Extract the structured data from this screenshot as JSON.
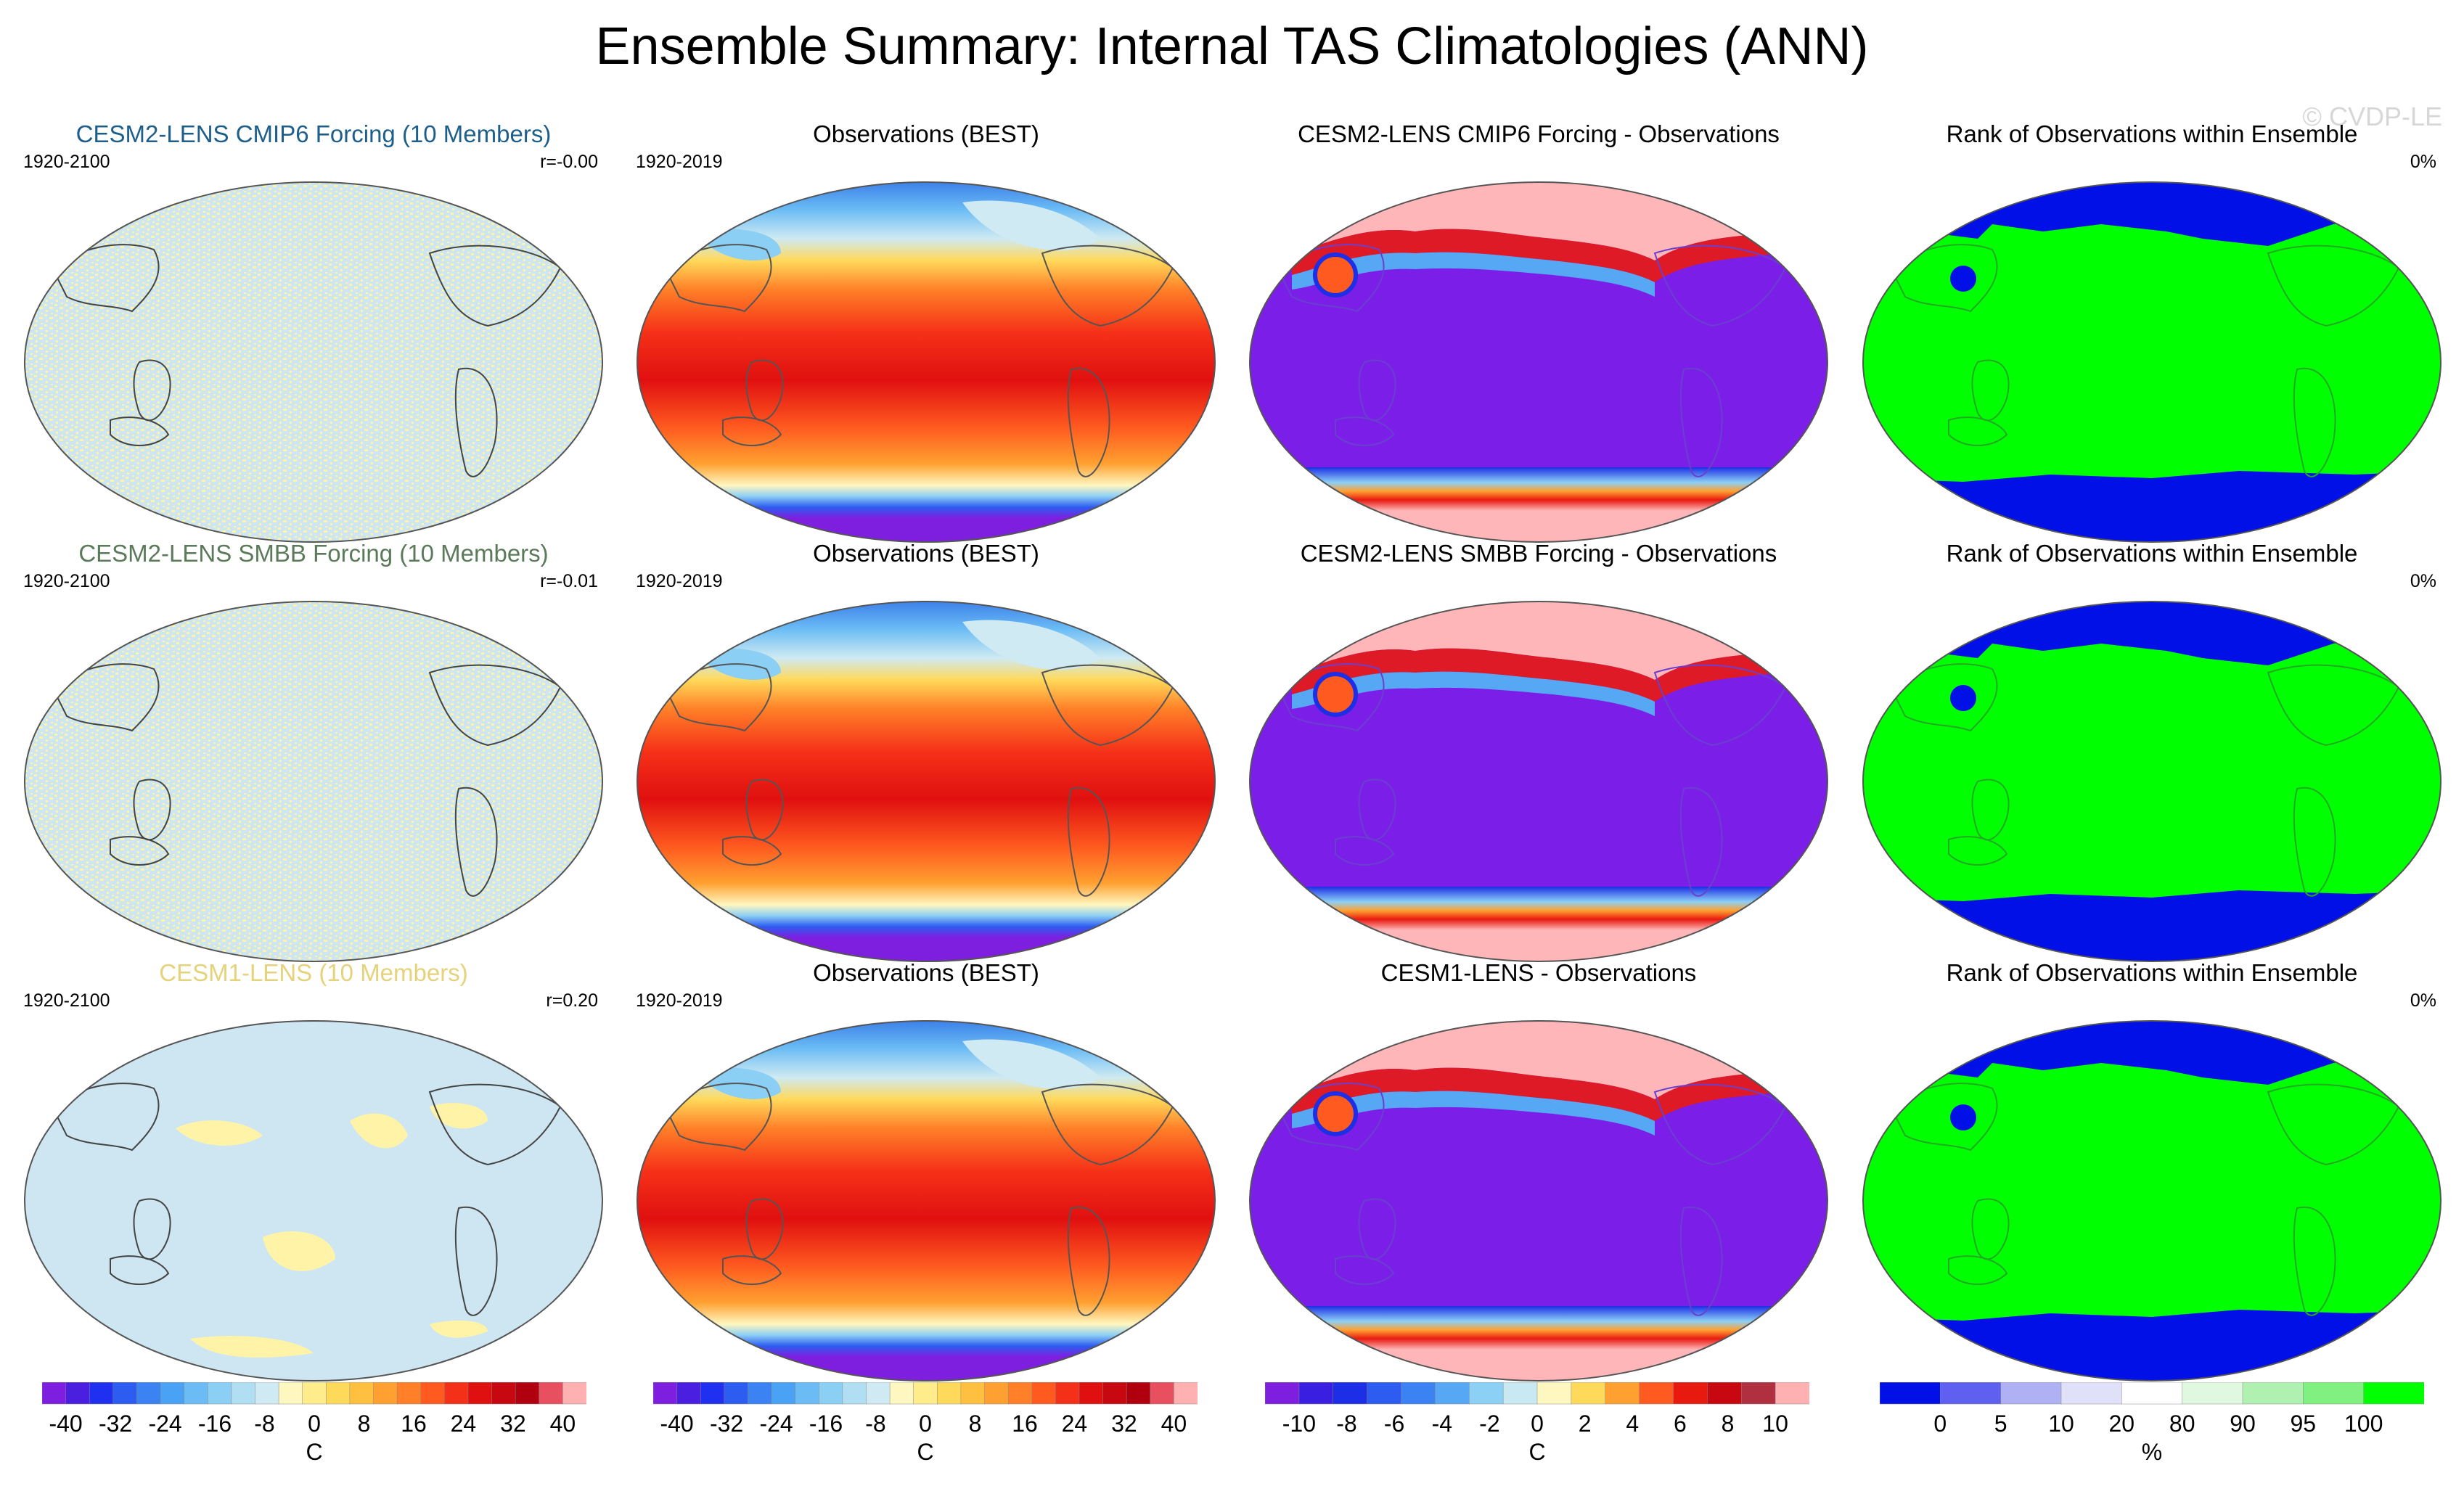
{
  "title": "Ensemble Summary: Internal TAS Climatologies (ANN)",
  "watermark": "© CVDP-LE",
  "colors": {
    "ocean_light": "#cde6f2",
    "speckle_yellow": "#fff3a8",
    "diff_base": "#7b1fe8",
    "diff_pink": "#ffb6b9",
    "rank_green": "#00ff00",
    "rank_blue": "#0010e6"
  },
  "rows": [
    {
      "ensemble": {
        "title": "CESM2-LENS CMIP6 Forcing (10 Members)",
        "title_color": "#1d5e8a",
        "period": "1920-2100",
        "r": "r=-0.00"
      },
      "obs": {
        "title": "Observations (BEST)",
        "period": "1920-2019"
      },
      "diff": {
        "title": "CESM2-LENS CMIP6 Forcing - Observations"
      },
      "rank": {
        "title": "Rank of Observations within Ensemble",
        "pct": "0%"
      }
    },
    {
      "ensemble": {
        "title": "CESM2-LENS SMBB Forcing (10 Members)",
        "title_color": "#5a7a5a",
        "period": "1920-2100",
        "r": "r=-0.01"
      },
      "obs": {
        "title": "Observations (BEST)",
        "period": "1920-2019"
      },
      "diff": {
        "title": "CESM2-LENS SMBB Forcing - Observations"
      },
      "rank": {
        "title": "Rank of Observations within Ensemble",
        "pct": "0%"
      }
    },
    {
      "ensemble": {
        "title": "CESM1-LENS (10 Members)",
        "title_color": "#e6d27a",
        "period": "1920-2100",
        "r": "r=0.20"
      },
      "obs": {
        "title": "Observations (BEST)",
        "period": "1920-2019"
      },
      "diff": {
        "title": "CESM1-LENS - Observations"
      },
      "rank": {
        "title": "Rank of Observations within Ensemble",
        "pct": "0%"
      }
    }
  ],
  "colorbars": [
    {
      "name": "tas-colorbar-1",
      "unit": "C",
      "labels": [
        "-40",
        "-32",
        "-24",
        "-16",
        "-8",
        "0",
        "8",
        "16",
        "24",
        "32",
        "40"
      ],
      "colors": [
        "#7e1fe0",
        "#4b1fe0",
        "#2030f0",
        "#2d5cf0",
        "#3b82f2",
        "#4aa2f5",
        "#6bbcf5",
        "#8ccff5",
        "#b0def3",
        "#cfeaf2",
        "#fff7c0",
        "#ffec8a",
        "#ffd95a",
        "#ffc040",
        "#ffa030",
        "#ff8028",
        "#ff5a20",
        "#f53018",
        "#e01010",
        "#c80810",
        "#b00010",
        "#e85060",
        "#ffb0b0"
      ]
    },
    {
      "name": "tas-colorbar-2",
      "unit": "C",
      "labels": [
        "-40",
        "-32",
        "-24",
        "-16",
        "-8",
        "0",
        "8",
        "16",
        "24",
        "32",
        "40"
      ],
      "colors": [
        "#7e1fe0",
        "#4b1fe0",
        "#2030f0",
        "#2d5cf0",
        "#3b82f2",
        "#4aa2f5",
        "#6bbcf5",
        "#8ccff5",
        "#b0def3",
        "#cfeaf2",
        "#fff7c0",
        "#ffec8a",
        "#ffd95a",
        "#ffc040",
        "#ffa030",
        "#ff8028",
        "#ff5a20",
        "#f53018",
        "#e01010",
        "#c80810",
        "#b00010",
        "#e85060",
        "#ffb0b0"
      ]
    },
    {
      "name": "diff-colorbar",
      "unit": "C",
      "labels": [
        "-10",
        "-8",
        "-6",
        "-4",
        "-2",
        "0",
        "2",
        "4",
        "6",
        "8",
        "10"
      ],
      "colors": [
        "#7e1fe0",
        "#3b1fe0",
        "#1c2fe6",
        "#2d5cf0",
        "#3b82f2",
        "#56a8f5",
        "#8cd0f5",
        "#c8e8f2",
        "#fff7c0",
        "#ffd95a",
        "#ffa030",
        "#ff5a20",
        "#e81a10",
        "#c80810",
        "#b03040",
        "#ffb0b0"
      ]
    },
    {
      "name": "rank-colorbar",
      "unit": "%",
      "labels": [
        "0",
        "5",
        "10",
        "20",
        "80",
        "90",
        "95",
        "100"
      ],
      "colors": [
        "#0010e6",
        "#6060f0",
        "#b0b0f4",
        "#e0e0f8",
        "#ffffff",
        "#e0f8e0",
        "#b0f0b0",
        "#80f080",
        "#00ff00"
      ]
    }
  ],
  "chart_data": [
    {
      "type": "heatmap",
      "title": "CESM2-LENS CMIP6 Forcing (10 Members)",
      "subtitle_left": "1920-2100",
      "subtitle_right": "r=-0.00",
      "units": "C",
      "range": [
        -40,
        40
      ]
    },
    {
      "type": "heatmap",
      "title": "Observations (BEST)",
      "subtitle_left": "1920-2019",
      "units": "C",
      "range": [
        -40,
        40
      ]
    },
    {
      "type": "heatmap",
      "title": "CESM2-LENS CMIP6 Forcing - Observations",
      "units": "C",
      "range": [
        -10,
        10
      ]
    },
    {
      "type": "heatmap",
      "title": "Rank of Observations within Ensemble",
      "subtitle_right": "0%",
      "units": "%",
      "range": [
        0,
        100
      ]
    },
    {
      "type": "heatmap",
      "title": "CESM2-LENS SMBB Forcing (10 Members)",
      "subtitle_left": "1920-2100",
      "subtitle_right": "r=-0.01",
      "units": "C",
      "range": [
        -40,
        40
      ]
    },
    {
      "type": "heatmap",
      "title": "Observations (BEST)",
      "subtitle_left": "1920-2019",
      "units": "C",
      "range": [
        -40,
        40
      ]
    },
    {
      "type": "heatmap",
      "title": "CESM2-LENS SMBB Forcing - Observations",
      "units": "C",
      "range": [
        -10,
        10
      ]
    },
    {
      "type": "heatmap",
      "title": "Rank of Observations within Ensemble",
      "subtitle_right": "0%",
      "units": "%",
      "range": [
        0,
        100
      ]
    },
    {
      "type": "heatmap",
      "title": "CESM1-LENS (10 Members)",
      "subtitle_left": "1920-2100",
      "subtitle_right": "r=0.20",
      "units": "C",
      "range": [
        -40,
        40
      ]
    },
    {
      "type": "heatmap",
      "title": "Observations (BEST)",
      "subtitle_left": "1920-2019",
      "units": "C",
      "range": [
        -40,
        40
      ]
    },
    {
      "type": "heatmap",
      "title": "CESM1-LENS - Observations",
      "units": "C",
      "range": [
        -10,
        10
      ]
    },
    {
      "type": "heatmap",
      "title": "Rank of Observations within Ensemble",
      "subtitle_right": "0%",
      "units": "%",
      "range": [
        0,
        100
      ]
    }
  ]
}
